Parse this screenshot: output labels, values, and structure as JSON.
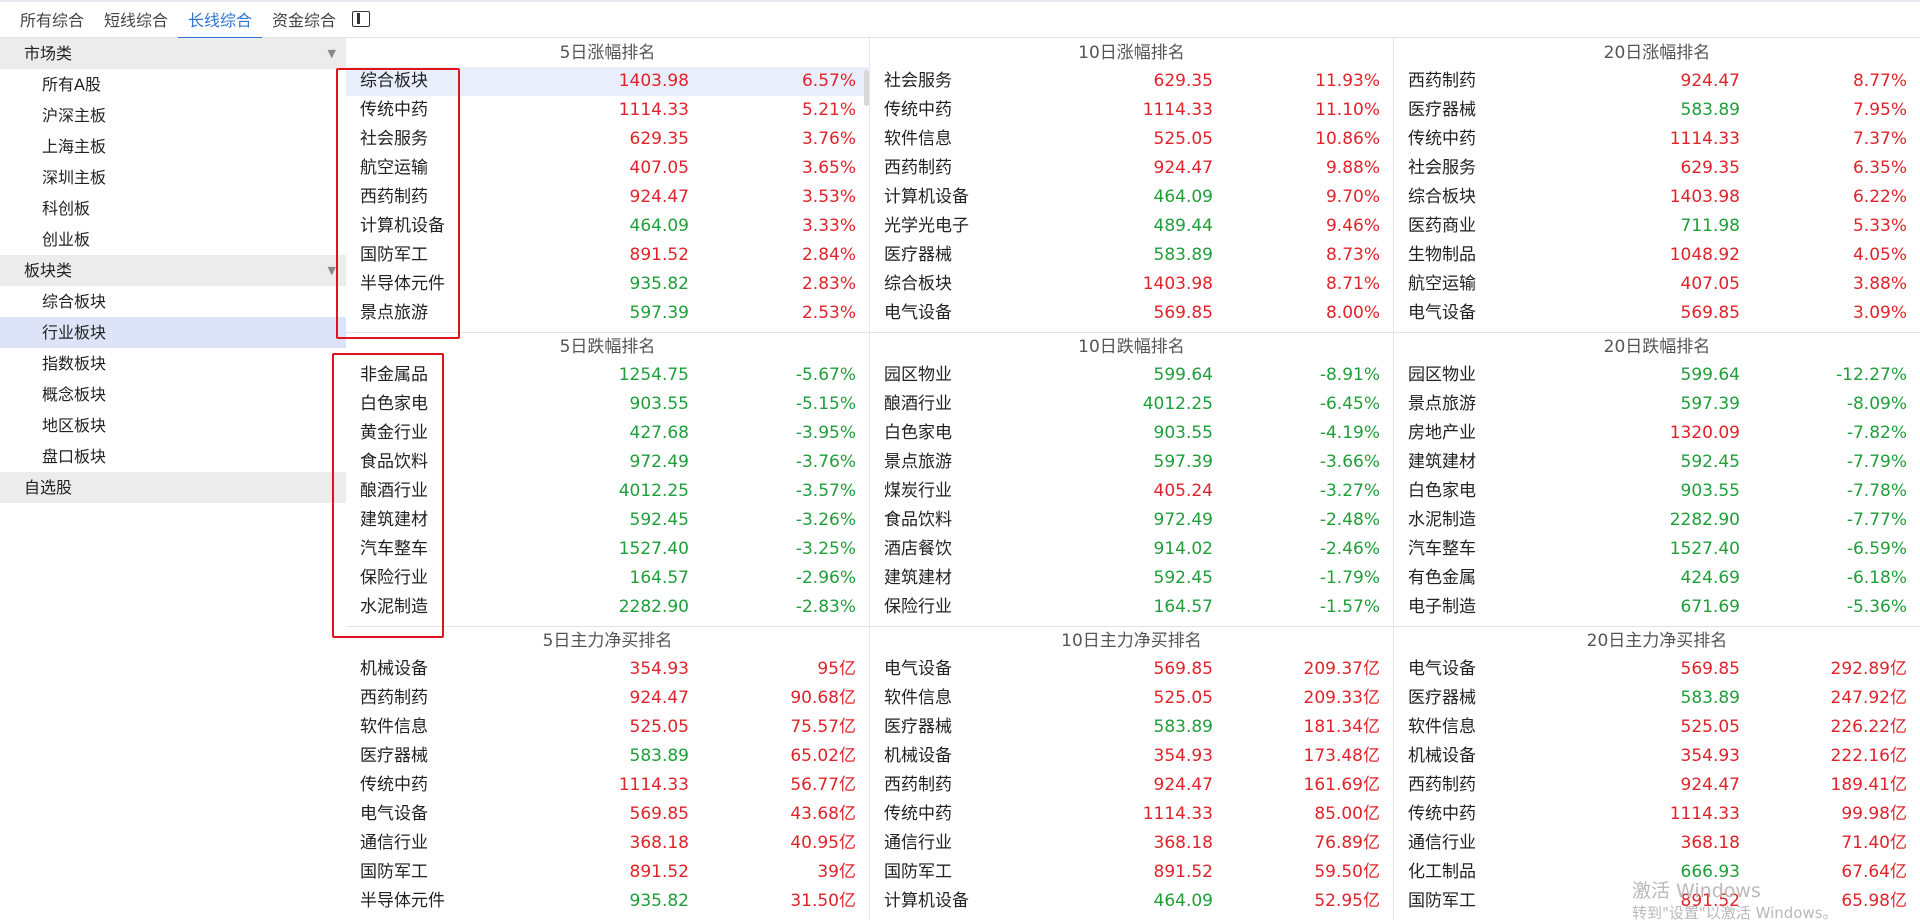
{
  "tabs": [
    "所有综合",
    "短线综合",
    "长线综合",
    "资金综合"
  ],
  "active_tab": 2,
  "sidebar": {
    "groups": [
      {
        "label": "市场类",
        "arrow": "▼",
        "items": [
          "所有A股",
          "沪深主板",
          "上海主板",
          "深圳主板",
          "科创板",
          "创业板"
        ]
      },
      {
        "label": "板块类",
        "arrow": "▼",
        "items": [
          "综合板块",
          "行业板块",
          "指数板块",
          "概念板块",
          "地区板块",
          "盘口板块"
        ]
      },
      {
        "label": "自选股",
        "arrow": "",
        "items": []
      }
    ],
    "active_item": "行业板块"
  },
  "sections": [
    {
      "columns": [
        {
          "title": "5日涨幅排名",
          "rows": [
            {
              "name": "综合板块",
              "price": "1403.98",
              "pc": "red",
              "chg": "6.57%",
              "cc": "red"
            },
            {
              "name": "传统中药",
              "price": "1114.33",
              "pc": "red",
              "chg": "5.21%",
              "cc": "red"
            },
            {
              "name": "社会服务",
              "price": "629.35",
              "pc": "red",
              "chg": "3.76%",
              "cc": "red"
            },
            {
              "name": "航空运输",
              "price": "407.05",
              "pc": "red",
              "chg": "3.65%",
              "cc": "red"
            },
            {
              "name": "西药制药",
              "price": "924.47",
              "pc": "red",
              "chg": "3.53%",
              "cc": "red"
            },
            {
              "name": "计算机设备",
              "price": "464.09",
              "pc": "green",
              "chg": "3.33%",
              "cc": "red"
            },
            {
              "name": "国防军工",
              "price": "891.52",
              "pc": "red",
              "chg": "2.84%",
              "cc": "red"
            },
            {
              "name": "半导体元件",
              "price": "935.82",
              "pc": "green",
              "chg": "2.83%",
              "cc": "red"
            },
            {
              "name": "景点旅游",
              "price": "597.39",
              "pc": "green",
              "chg": "2.53%",
              "cc": "red"
            }
          ]
        },
        {
          "title": "10日涨幅排名",
          "rows": [
            {
              "name": "社会服务",
              "price": "629.35",
              "pc": "red",
              "chg": "11.93%",
              "cc": "red"
            },
            {
              "name": "传统中药",
              "price": "1114.33",
              "pc": "red",
              "chg": "11.10%",
              "cc": "red"
            },
            {
              "name": "软件信息",
              "price": "525.05",
              "pc": "red",
              "chg": "10.86%",
              "cc": "red"
            },
            {
              "name": "西药制药",
              "price": "924.47",
              "pc": "red",
              "chg": "9.88%",
              "cc": "red"
            },
            {
              "name": "计算机设备",
              "price": "464.09",
              "pc": "green",
              "chg": "9.70%",
              "cc": "red"
            },
            {
              "name": "光学光电子",
              "price": "489.44",
              "pc": "green",
              "chg": "9.46%",
              "cc": "red"
            },
            {
              "name": "医疗器械",
              "price": "583.89",
              "pc": "green",
              "chg": "8.73%",
              "cc": "red"
            },
            {
              "name": "综合板块",
              "price": "1403.98",
              "pc": "red",
              "chg": "8.71%",
              "cc": "red"
            },
            {
              "name": "电气设备",
              "price": "569.85",
              "pc": "red",
              "chg": "8.00%",
              "cc": "red"
            }
          ]
        },
        {
          "title": "20日涨幅排名",
          "rows": [
            {
              "name": "西药制药",
              "price": "924.47",
              "pc": "red",
              "chg": "8.77%",
              "cc": "red"
            },
            {
              "name": "医疗器械",
              "price": "583.89",
              "pc": "green",
              "chg": "7.95%",
              "cc": "red"
            },
            {
              "name": "传统中药",
              "price": "1114.33",
              "pc": "red",
              "chg": "7.37%",
              "cc": "red"
            },
            {
              "name": "社会服务",
              "price": "629.35",
              "pc": "red",
              "chg": "6.35%",
              "cc": "red"
            },
            {
              "name": "综合板块",
              "price": "1403.98",
              "pc": "red",
              "chg": "6.22%",
              "cc": "red"
            },
            {
              "name": "医药商业",
              "price": "711.98",
              "pc": "green",
              "chg": "5.33%",
              "cc": "red"
            },
            {
              "name": "生物制品",
              "price": "1048.92",
              "pc": "red",
              "chg": "4.05%",
              "cc": "red"
            },
            {
              "name": "航空运输",
              "price": "407.05",
              "pc": "red",
              "chg": "3.88%",
              "cc": "red"
            },
            {
              "name": "电气设备",
              "price": "569.85",
              "pc": "red",
              "chg": "3.09%",
              "cc": "red"
            }
          ]
        }
      ]
    },
    {
      "columns": [
        {
          "title": "5日跌幅排名",
          "rows": [
            {
              "name": "非金属品",
              "price": "1254.75",
              "pc": "green",
              "chg": "-5.67%",
              "cc": "green"
            },
            {
              "name": "白色家电",
              "price": "903.55",
              "pc": "green",
              "chg": "-5.15%",
              "cc": "green"
            },
            {
              "name": "黄金行业",
              "price": "427.68",
              "pc": "green",
              "chg": "-3.95%",
              "cc": "green"
            },
            {
              "name": "食品饮料",
              "price": "972.49",
              "pc": "green",
              "chg": "-3.76%",
              "cc": "green"
            },
            {
              "name": "酿酒行业",
              "price": "4012.25",
              "pc": "green",
              "chg": "-3.57%",
              "cc": "green"
            },
            {
              "name": "建筑建材",
              "price": "592.45",
              "pc": "green",
              "chg": "-3.26%",
              "cc": "green"
            },
            {
              "name": "汽车整车",
              "price": "1527.40",
              "pc": "green",
              "chg": "-3.25%",
              "cc": "green"
            },
            {
              "name": "保险行业",
              "price": "164.57",
              "pc": "green",
              "chg": "-2.96%",
              "cc": "green"
            },
            {
              "name": "水泥制造",
              "price": "2282.90",
              "pc": "green",
              "chg": "-2.83%",
              "cc": "green"
            }
          ]
        },
        {
          "title": "10日跌幅排名",
          "rows": [
            {
              "name": "园区物业",
              "price": "599.64",
              "pc": "green",
              "chg": "-8.91%",
              "cc": "green"
            },
            {
              "name": "酿酒行业",
              "price": "4012.25",
              "pc": "green",
              "chg": "-6.45%",
              "cc": "green"
            },
            {
              "name": "白色家电",
              "price": "903.55",
              "pc": "green",
              "chg": "-4.19%",
              "cc": "green"
            },
            {
              "name": "景点旅游",
              "price": "597.39",
              "pc": "green",
              "chg": "-3.66%",
              "cc": "green"
            },
            {
              "name": "煤炭行业",
              "price": "405.24",
              "pc": "red",
              "chg": "-3.27%",
              "cc": "green"
            },
            {
              "name": "食品饮料",
              "price": "972.49",
              "pc": "green",
              "chg": "-2.48%",
              "cc": "green"
            },
            {
              "name": "酒店餐饮",
              "price": "914.02",
              "pc": "green",
              "chg": "-2.46%",
              "cc": "green"
            },
            {
              "name": "建筑建材",
              "price": "592.45",
              "pc": "green",
              "chg": "-1.79%",
              "cc": "green"
            },
            {
              "name": "保险行业",
              "price": "164.57",
              "pc": "green",
              "chg": "-1.57%",
              "cc": "green"
            }
          ]
        },
        {
          "title": "20日跌幅排名",
          "rows": [
            {
              "name": "园区物业",
              "price": "599.64",
              "pc": "green",
              "chg": "-12.27%",
              "cc": "green"
            },
            {
              "name": "景点旅游",
              "price": "597.39",
              "pc": "green",
              "chg": "-8.09%",
              "cc": "green"
            },
            {
              "name": "房地产业",
              "price": "1320.09",
              "pc": "red",
              "chg": "-7.82%",
              "cc": "green"
            },
            {
              "name": "建筑建材",
              "price": "592.45",
              "pc": "green",
              "chg": "-7.79%",
              "cc": "green"
            },
            {
              "name": "白色家电",
              "price": "903.55",
              "pc": "green",
              "chg": "-7.78%",
              "cc": "green"
            },
            {
              "name": "水泥制造",
              "price": "2282.90",
              "pc": "green",
              "chg": "-7.77%",
              "cc": "green"
            },
            {
              "name": "汽车整车",
              "price": "1527.40",
              "pc": "green",
              "chg": "-6.59%",
              "cc": "green"
            },
            {
              "name": "有色金属",
              "price": "424.69",
              "pc": "green",
              "chg": "-6.18%",
              "cc": "green"
            },
            {
              "name": "电子制造",
              "price": "671.69",
              "pc": "green",
              "chg": "-5.36%",
              "cc": "green"
            }
          ]
        }
      ]
    },
    {
      "columns": [
        {
          "title": "5日主力净买排名",
          "rows": [
            {
              "name": "机械设备",
              "price": "354.93",
              "pc": "red",
              "chg": "95亿",
              "cc": "red"
            },
            {
              "name": "西药制药",
              "price": "924.47",
              "pc": "red",
              "chg": "90.68亿",
              "cc": "red"
            },
            {
              "name": "软件信息",
              "price": "525.05",
              "pc": "red",
              "chg": "75.57亿",
              "cc": "red"
            },
            {
              "name": "医疗器械",
              "price": "583.89",
              "pc": "green",
              "chg": "65.02亿",
              "cc": "red"
            },
            {
              "name": "传统中药",
              "price": "1114.33",
              "pc": "red",
              "chg": "56.77亿",
              "cc": "red"
            },
            {
              "name": "电气设备",
              "price": "569.85",
              "pc": "red",
              "chg": "43.68亿",
              "cc": "red"
            },
            {
              "name": "通信行业",
              "price": "368.18",
              "pc": "red",
              "chg": "40.95亿",
              "cc": "red"
            },
            {
              "name": "国防军工",
              "price": "891.52",
              "pc": "red",
              "chg": "39亿",
              "cc": "red"
            },
            {
              "name": "半导体元件",
              "price": "935.82",
              "pc": "green",
              "chg": "31.50亿",
              "cc": "red"
            }
          ]
        },
        {
          "title": "10日主力净买排名",
          "rows": [
            {
              "name": "电气设备",
              "price": "569.85",
              "pc": "red",
              "chg": "209.37亿",
              "cc": "red"
            },
            {
              "name": "软件信息",
              "price": "525.05",
              "pc": "red",
              "chg": "209.33亿",
              "cc": "red"
            },
            {
              "name": "医疗器械",
              "price": "583.89",
              "pc": "green",
              "chg": "181.34亿",
              "cc": "red"
            },
            {
              "name": "机械设备",
              "price": "354.93",
              "pc": "red",
              "chg": "173.48亿",
              "cc": "red"
            },
            {
              "name": "西药制药",
              "price": "924.47",
              "pc": "red",
              "chg": "161.69亿",
              "cc": "red"
            },
            {
              "name": "传统中药",
              "price": "1114.33",
              "pc": "red",
              "chg": "85.00亿",
              "cc": "red"
            },
            {
              "name": "通信行业",
              "price": "368.18",
              "pc": "red",
              "chg": "76.89亿",
              "cc": "red"
            },
            {
              "name": "国防军工",
              "price": "891.52",
              "pc": "red",
              "chg": "59.50亿",
              "cc": "red"
            },
            {
              "name": "计算机设备",
              "price": "464.09",
              "pc": "green",
              "chg": "52.95亿",
              "cc": "red"
            }
          ]
        },
        {
          "title": "20日主力净买排名",
          "rows": [
            {
              "name": "电气设备",
              "price": "569.85",
              "pc": "red",
              "chg": "292.89亿",
              "cc": "red"
            },
            {
              "name": "医疗器械",
              "price": "583.89",
              "pc": "green",
              "chg": "247.92亿",
              "cc": "red"
            },
            {
              "name": "软件信息",
              "price": "525.05",
              "pc": "red",
              "chg": "226.22亿",
              "cc": "red"
            },
            {
              "name": "机械设备",
              "price": "354.93",
              "pc": "red",
              "chg": "222.16亿",
              "cc": "red"
            },
            {
              "name": "西药制药",
              "price": "924.47",
              "pc": "red",
              "chg": "189.41亿",
              "cc": "red"
            },
            {
              "name": "传统中药",
              "price": "1114.33",
              "pc": "red",
              "chg": "99.98亿",
              "cc": "red"
            },
            {
              "name": "通信行业",
              "price": "368.18",
              "pc": "red",
              "chg": "71.40亿",
              "cc": "red"
            },
            {
              "name": "化工制品",
              "price": "666.93",
              "pc": "green",
              "chg": "67.64亿",
              "cc": "red"
            },
            {
              "name": "国防军工",
              "price": "891.52",
              "pc": "red",
              "chg": "65.98亿",
              "cc": "red"
            }
          ]
        }
      ]
    }
  ],
  "watermark": {
    "line1": "激活 Windows",
    "line2": "转到\"设置\"以激活 Windows。"
  },
  "colors": {
    "up": "#e0232a",
    "down": "#1f9e3a",
    "accent": "#2f74d0",
    "annotation": "#e0141c"
  }
}
